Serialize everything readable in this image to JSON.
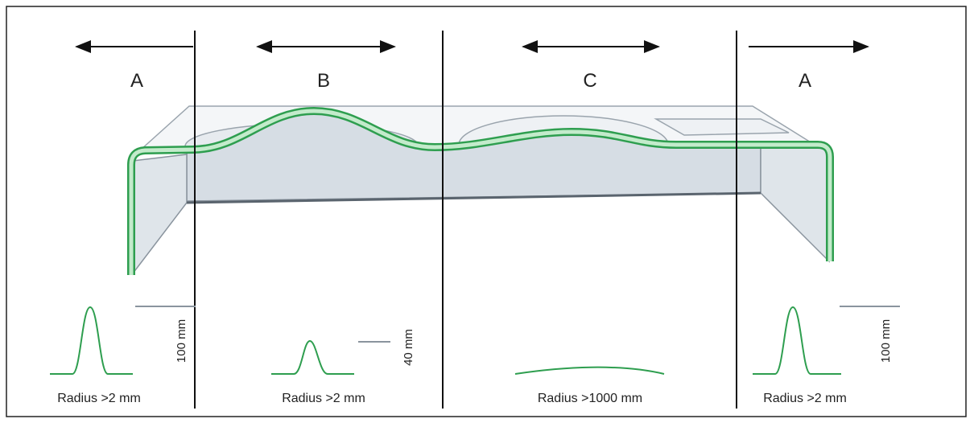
{
  "sections": [
    {
      "label": "A",
      "radius": "Radius >2 mm",
      "scale": "100 mm"
    },
    {
      "label": "B",
      "radius": "Radius >2 mm",
      "scale": "40 mm"
    },
    {
      "label": "C",
      "radius": "Radius >1000 mm"
    },
    {
      "label": "A",
      "radius": "Radius >2 mm",
      "scale": "100 mm"
    }
  ]
}
